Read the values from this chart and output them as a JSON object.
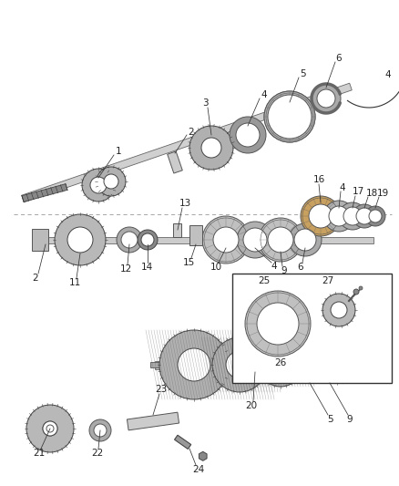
{
  "bg_color": "#ffffff",
  "gear_gray": "#b8b8b8",
  "gear_dark": "#888888",
  "gear_edge": "#444444",
  "shaft_color": "#cccccc",
  "shaft_edge": "#555555",
  "bearing_fill": "#c8a060",
  "bearing_edge": "#555555",
  "ring_fill": "#aaaaaa",
  "ring_edge": "#555555",
  "label_color": "#222222",
  "label_fs": 7.5,
  "line_color": "#333333",
  "white": "#ffffff"
}
